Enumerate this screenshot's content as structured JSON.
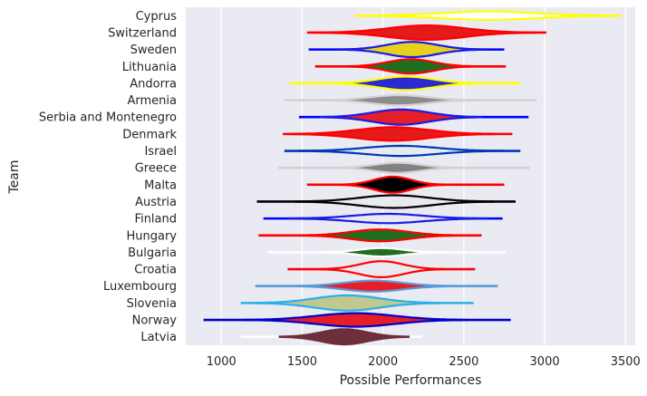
{
  "chart_data": {
    "type": "violin",
    "orientation": "horizontal",
    "xlabel": "Possible Performances",
    "ylabel": "Team",
    "xlim": [
      780,
      3560
    ],
    "xticks": [
      1000,
      1500,
      2000,
      2500,
      3000,
      3500
    ],
    "grid": true,
    "background": "#eaeaf2",
    "grid_color": "#ffffff",
    "categories": [
      "Cyprus",
      "Switzerland",
      "Sweden",
      "Lithuania",
      "Andorra",
      "Armenia",
      "Serbia and Montenegro",
      "Denmark",
      "Israel",
      "Greece",
      "Malta",
      "Austria",
      "Finland",
      "Hungary",
      "Bulgaria",
      "Croatia",
      "Luxembourg",
      "Slovenia",
      "Norway",
      "Latvia"
    ],
    "series": [
      {
        "team": "Cyprus",
        "min": 1830,
        "max": 3450,
        "fill": "#ffffff",
        "edge": "#ffff00",
        "center": 2650,
        "spread": 430,
        "peak": 0.5,
        "whisker": "#ffff00"
      },
      {
        "team": "Switzerland",
        "min": 1530,
        "max": 3010,
        "fill": "#e51a1a",
        "edge": "#ff0000",
        "center": 2270,
        "spread": 350,
        "peak": 0.85,
        "whisker": "#ff0000"
      },
      {
        "team": "Sweden",
        "min": 1540,
        "max": 2750,
        "fill": "#e6d21c",
        "edge": "#1a1ae6",
        "center": 2180,
        "spread": 230,
        "peak": 0.9,
        "whisker": "#0000ff"
      },
      {
        "team": "Lithuania",
        "min": 1580,
        "max": 2760,
        "fill": "#1e6e1e",
        "edge": "#ff0000",
        "center": 2170,
        "spread": 210,
        "peak": 0.85,
        "whisker": "#ff0000"
      },
      {
        "team": "Andorra",
        "min": 1420,
        "max": 2850,
        "fill": "#2a2ad0",
        "edge": "#ffff00",
        "center": 2140,
        "spread": 250,
        "peak": 0.8,
        "whisker": "#ffff00"
      },
      {
        "team": "Armenia",
        "min": 1390,
        "max": 2950,
        "fill": "#8c8c8c",
        "edge": "#d3d3d3",
        "center": 2100,
        "spread": 260,
        "peak": 0.6,
        "whisker": "#d3d3d3"
      },
      {
        "team": "Serbia and Montenegro",
        "min": 1480,
        "max": 2900,
        "fill": "#e61e28",
        "edge": "#1a1ae6",
        "center": 2110,
        "spread": 260,
        "peak": 0.9,
        "whisker": "#0000ff"
      },
      {
        "team": "Denmark",
        "min": 1380,
        "max": 2800,
        "fill": "#e61a1a",
        "edge": "#ff0000",
        "center": 2060,
        "spread": 330,
        "peak": 0.8,
        "whisker": "#ff0000"
      },
      {
        "team": "Israel",
        "min": 1390,
        "max": 2850,
        "fill": "#e9e9f0",
        "edge": "#0038b8",
        "center": 2110,
        "spread": 330,
        "peak": 0.6,
        "whisker": "#0038b8"
      },
      {
        "team": "Greece",
        "min": 1350,
        "max": 2910,
        "fill": "#828282",
        "edge": "#d3d3d3",
        "center": 2090,
        "spread": 210,
        "peak": 0.6,
        "whisker": "#d3d3d3"
      },
      {
        "team": "Malta",
        "min": 1530,
        "max": 2750,
        "fill": "#000000",
        "edge": "#ff0000",
        "center": 2060,
        "spread": 170,
        "peak": 0.95,
        "whisker": "#ff0000"
      },
      {
        "team": "Austria",
        "min": 1220,
        "max": 2820,
        "fill": "#e9e9f0",
        "edge": "#000000",
        "center": 2070,
        "spread": 320,
        "peak": 0.75,
        "whisker": "#000000"
      },
      {
        "team": "Finland",
        "min": 1260,
        "max": 2740,
        "fill": "#e9e9f0",
        "edge": "#1a1ae6",
        "center": 2030,
        "spread": 320,
        "peak": 0.55,
        "whisker": "#0000ff"
      },
      {
        "team": "Hungary",
        "min": 1230,
        "max": 2610,
        "fill": "#1e6e1e",
        "edge": "#ff0000",
        "center": 1980,
        "spread": 260,
        "peak": 0.7,
        "whisker": "#ff0000"
      },
      {
        "team": "Bulgaria",
        "min": 1290,
        "max": 2760,
        "fill": "#1e6e1e",
        "edge": "#ffffff",
        "center": 1990,
        "spread": 200,
        "peak": 0.5,
        "whisker": "#ffffff"
      },
      {
        "team": "Croatia",
        "min": 1410,
        "max": 2570,
        "fill": "#e9e9f0",
        "edge": "#ff0000",
        "center": 1990,
        "spread": 200,
        "peak": 0.95,
        "whisker": "#ff0000"
      },
      {
        "team": "Luxembourg",
        "min": 1210,
        "max": 2710,
        "fill": "#e61e28",
        "edge": "#5a9bd5",
        "center": 1940,
        "spread": 270,
        "peak": 0.65,
        "whisker": "#5a9bd5"
      },
      {
        "team": "Slovenia",
        "min": 1120,
        "max": 2560,
        "fill": "#c0c890",
        "edge": "#2ab0e8",
        "center": 1780,
        "spread": 300,
        "peak": 0.9,
        "whisker": "#2ab0e8"
      },
      {
        "team": "Norway",
        "min": 890,
        "max": 2790,
        "fill": "#e61e28",
        "edge": "#0000cc",
        "center": 1830,
        "spread": 360,
        "peak": 0.8,
        "whisker": "#0000cc"
      },
      {
        "team": "Latvia",
        "min": 1120,
        "max": 2240,
        "fill": "#6e2f3c",
        "edge": "#6e2f3c",
        "center": 1760,
        "spread": 210,
        "peak": 0.9,
        "whisker": "#ffffff"
      }
    ]
  }
}
